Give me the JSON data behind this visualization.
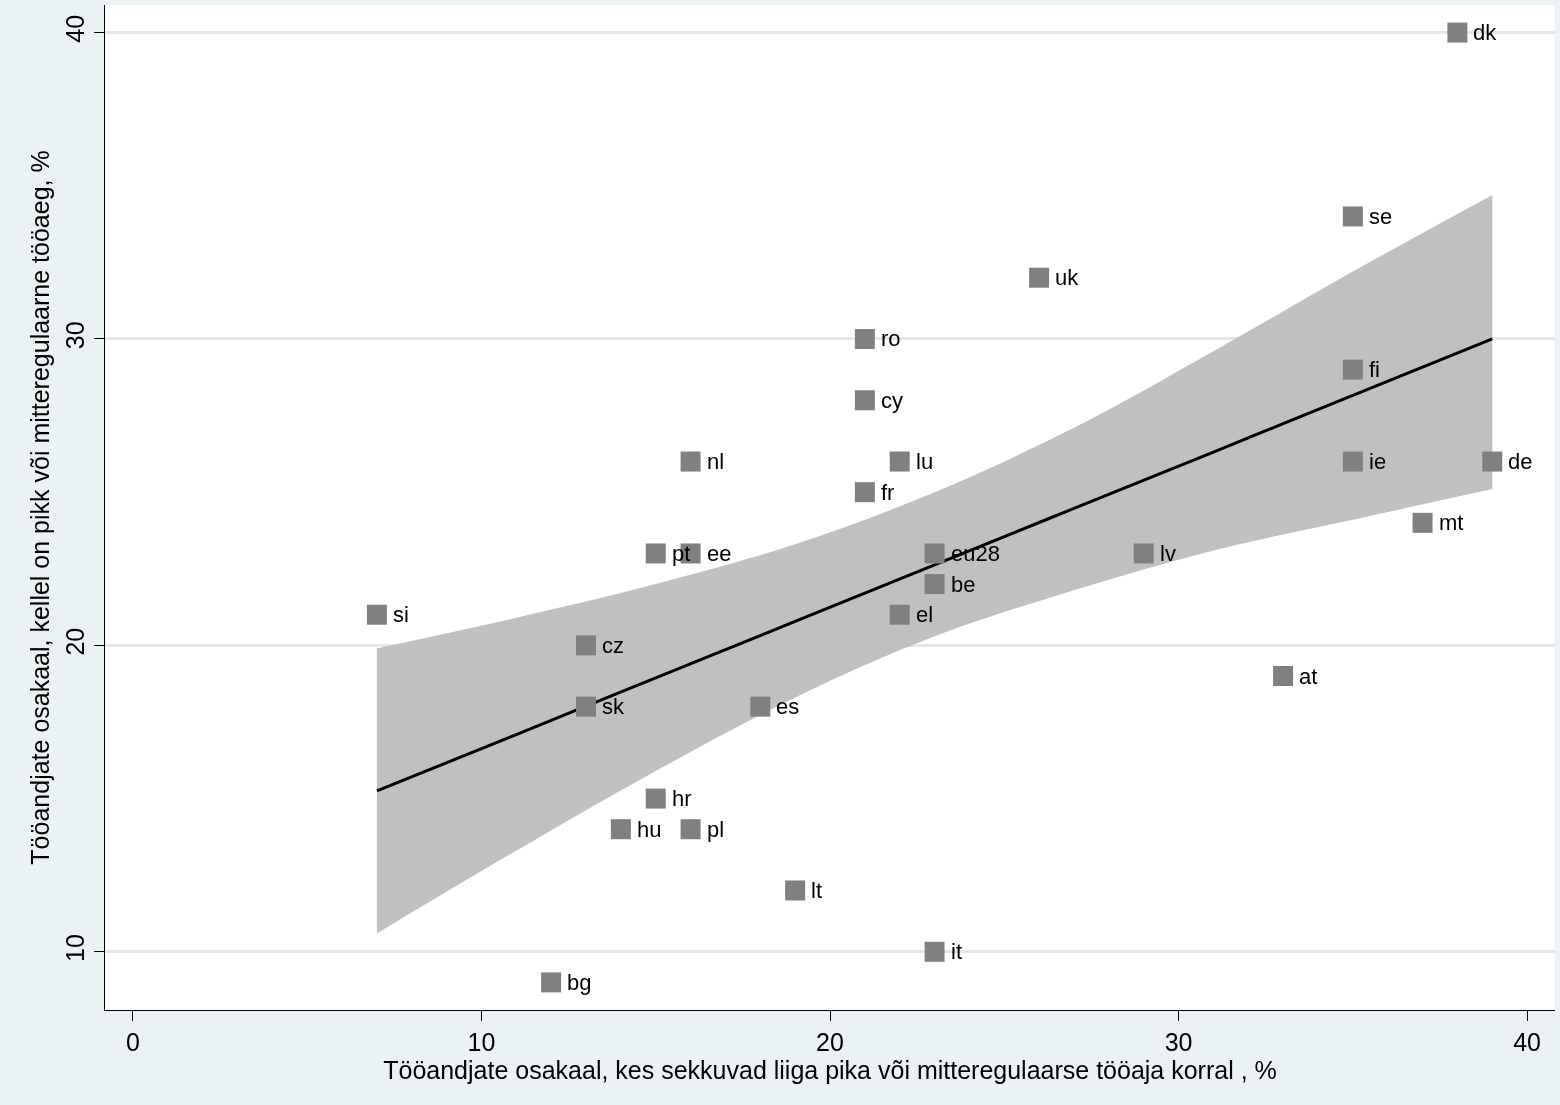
{
  "chart_data": {
    "type": "scatter",
    "xlabel": "Tööandjate osakaal, kes sekkuvad liiga pika või mitteregulaarse tööaja korral , %",
    "ylabel": "Tööandjate osakaal, kellel on pikk või mitteregulaarne tööaeg, %",
    "xlim": [
      -0.8,
      40.8
    ],
    "ylim": [
      8.1,
      40.9
    ],
    "xticks": [
      0,
      10,
      20,
      30,
      40
    ],
    "yticks": [
      10,
      20,
      30,
      40
    ],
    "grid": "y",
    "series": [
      {
        "marker": "square",
        "color": "#808080",
        "x": [
          38,
          35,
          26,
          21,
          21,
          16,
          22,
          21,
          15,
          16,
          23,
          29,
          23,
          22,
          7,
          13,
          13,
          18,
          33,
          15,
          14,
          16,
          19,
          23,
          12,
          35,
          35,
          39,
          37
        ],
        "values": [
          40,
          34,
          32,
          30,
          28,
          26,
          26,
          25,
          23,
          23,
          23,
          23,
          22,
          21,
          21,
          20,
          18,
          18,
          19,
          15,
          14,
          14,
          12,
          10,
          9,
          29,
          26,
          26,
          24
        ]
      },
      {
        "type": "line",
        "marker": "none",
        "color": "#000000",
        "x": [
          7,
          11,
          15,
          19,
          23,
          27,
          31,
          35,
          39
        ],
        "values": [
          15.25,
          17.09,
          18.94,
          20.78,
          22.63,
          24.47,
          26.31,
          28.16,
          30.0
        ],
        "lower": [
          10.6,
          13.3,
          15.9,
          18.3,
          20.3,
          21.8,
          23.1,
          24.1,
          25.1
        ],
        "upper": [
          19.9,
          20.9,
          22.0,
          23.3,
          25.0,
          27.1,
          29.6,
          32.2,
          34.7
        ]
      }
    ],
    "annotations": [
      {
        "text": "dk",
        "x": 38,
        "y": 40
      },
      {
        "text": "se",
        "x": 35,
        "y": 34
      },
      {
        "text": "uk",
        "x": 26,
        "y": 32
      },
      {
        "text": "ro",
        "x": 21,
        "y": 30
      },
      {
        "text": "cy",
        "x": 21,
        "y": 28
      },
      {
        "text": "nl",
        "x": 16,
        "y": 26
      },
      {
        "text": "lu",
        "x": 22,
        "y": 26
      },
      {
        "text": "fr",
        "x": 21,
        "y": 25
      },
      {
        "text": "pt",
        "x": 15,
        "y": 23
      },
      {
        "text": "ee",
        "x": 16,
        "y": 23
      },
      {
        "text": "eu28",
        "x": 23,
        "y": 23
      },
      {
        "text": "lv",
        "x": 29,
        "y": 23
      },
      {
        "text": "be",
        "x": 23,
        "y": 22
      },
      {
        "text": "el",
        "x": 22,
        "y": 21
      },
      {
        "text": "si",
        "x": 7,
        "y": 21
      },
      {
        "text": "cz",
        "x": 13,
        "y": 20
      },
      {
        "text": "sk",
        "x": 13,
        "y": 18
      },
      {
        "text": "es",
        "x": 18,
        "y": 18
      },
      {
        "text": "at",
        "x": 33,
        "y": 19
      },
      {
        "text": "hr",
        "x": 15,
        "y": 15
      },
      {
        "text": "hu",
        "x": 14,
        "y": 14
      },
      {
        "text": "pl",
        "x": 16,
        "y": 14
      },
      {
        "text": "lt",
        "x": 19,
        "y": 12
      },
      {
        "text": "it",
        "x": 23,
        "y": 10
      },
      {
        "text": "bg",
        "x": 12,
        "y": 9
      },
      {
        "text": "fi",
        "x": 35,
        "y": 29
      },
      {
        "text": "ie",
        "x": 35,
        "y": 26
      },
      {
        "text": "de",
        "x": 39,
        "y": 26
      },
      {
        "text": "mt",
        "x": 37,
        "y": 24
      }
    ]
  }
}
